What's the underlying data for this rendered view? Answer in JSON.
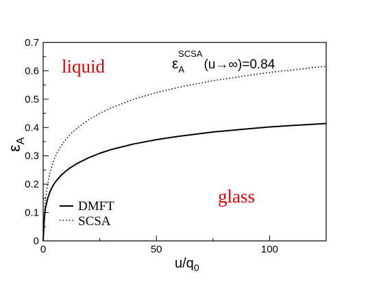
{
  "chart_data": {
    "type": "line",
    "title": "",
    "xlabel": "u/q",
    "xlabel_sub": "0",
    "ylabel": "ε",
    "ylabel_sub": "A",
    "xlim": [
      0,
      125
    ],
    "ylim": [
      0,
      0.7
    ],
    "x_ticks": [
      0,
      50,
      100
    ],
    "y_ticks": [
      0,
      0.1,
      0.2,
      0.3,
      0.4,
      0.5,
      0.6,
      0.7
    ],
    "x_tick_labels": [
      "0",
      "50",
      "100"
    ],
    "y_tick_labels": [
      "0",
      "0.1",
      "0.2",
      "0.3",
      "0.4",
      "0.5",
      "0.6",
      "0.7"
    ],
    "grid": false,
    "legend_position": "bottom-left",
    "series": [
      {
        "name": "DMFT",
        "style": "solid",
        "color": "#000000",
        "x": [
          0,
          0.5,
          1,
          2,
          3,
          4,
          5,
          6,
          8,
          10,
          12,
          15,
          20,
          25,
          30,
          40,
          50,
          60,
          75,
          90,
          100,
          110,
          125
        ],
        "y": [
          0.0,
          0.08,
          0.115,
          0.15,
          0.173,
          0.19,
          0.203,
          0.214,
          0.232,
          0.246,
          0.258,
          0.273,
          0.293,
          0.309,
          0.322,
          0.342,
          0.357,
          0.369,
          0.384,
          0.395,
          0.402,
          0.407,
          0.414
        ]
      },
      {
        "name": "SCSA",
        "style": "dotted",
        "color": "#000000",
        "x": [
          0,
          0.5,
          1,
          2,
          3,
          4,
          5,
          6,
          8,
          10,
          12,
          15,
          20,
          25,
          30,
          40,
          50,
          60,
          75,
          90,
          100,
          110,
          125
        ],
        "y": [
          0.0,
          0.1,
          0.145,
          0.2,
          0.24,
          0.268,
          0.29,
          0.308,
          0.336,
          0.358,
          0.376,
          0.398,
          0.427,
          0.45,
          0.469,
          0.5,
          0.523,
          0.542,
          0.565,
          0.583,
          0.594,
          0.603,
          0.616
        ]
      }
    ],
    "annotations": {
      "liquid": "liquid",
      "glass": "glass",
      "scsa_limit_eps": "ε",
      "scsa_limit_sub": "A",
      "scsa_limit_sup": "SCSA",
      "scsa_limit_rest": "(u→∞)=0.84"
    },
    "colors": {
      "phase_label": "#e00000",
      "lines": "#000000"
    }
  }
}
